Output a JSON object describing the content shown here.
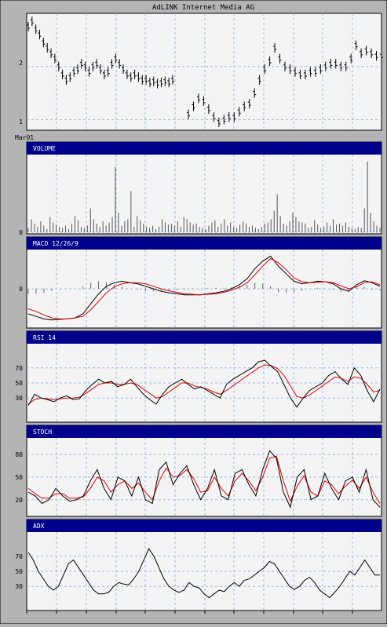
{
  "chart_data": [
    {
      "type": "bar",
      "title": "AdLINK Internet Media AG",
      "y_ticks": [
        "1",
        "2"
      ],
      "x_tick_label": "Mar01",
      "ylim": [
        0.8,
        3.0
      ],
      "note": "OHLC price bars",
      "segments": [
        [
          2.75,
          2.85,
          2.7,
          2.6,
          2.45,
          2.35,
          2.25,
          2.15,
          2.0,
          1.85,
          1.75,
          1.8,
          1.9,
          1.95,
          2.05,
          2.0,
          1.9,
          2.0,
          2.05,
          1.95,
          1.85,
          1.9,
          2.05,
          2.15,
          2.05,
          1.95,
          1.85,
          1.8,
          1.85,
          1.8,
          1.75,
          1.75,
          1.7,
          1.72,
          1.68,
          1.7,
          1.72,
          1.7,
          1.75
        ],
        [
          1.1,
          1.25,
          1.4,
          1.35,
          1.2,
          1.05,
          0.95,
          1.0,
          1.05,
          1.05,
          1.15,
          1.25,
          1.3,
          1.5,
          1.75,
          1.95,
          2.1,
          2.35,
          2.15,
          2.0,
          1.95,
          1.9,
          1.85,
          1.85,
          1.9,
          1.9,
          1.95,
          2.0,
          2.05,
          2.05,
          2.0,
          2.0,
          2.15,
          2.4,
          2.25,
          2.3,
          2.25,
          2.2,
          2.2
        ]
      ],
      "series": [
        {
          "name": "VOLUME",
          "y_ticks": [
            "0"
          ],
          "values": [
            4,
            12,
            8,
            5,
            10,
            6,
            3,
            14,
            9,
            7,
            5,
            4,
            6,
            3,
            8,
            15,
            11,
            5,
            4,
            6,
            22,
            12,
            8,
            5,
            10,
            6,
            9,
            14,
            60,
            18,
            6,
            10,
            12,
            38,
            5,
            15,
            11,
            8,
            5,
            4,
            6,
            3,
            5,
            12,
            9,
            7,
            8,
            6,
            10,
            5,
            14,
            12,
            9,
            7,
            8,
            5,
            4,
            3,
            6,
            9,
            11,
            5,
            8,
            12,
            6,
            9,
            5,
            4,
            7,
            10,
            8,
            5,
            6,
            4,
            3,
            5,
            8,
            9,
            12,
            20,
            35,
            15,
            8,
            6,
            10,
            18,
            14,
            10,
            9,
            8,
            4,
            5,
            11,
            7,
            4,
            5,
            9,
            6,
            12,
            7,
            8,
            6,
            9,
            5,
            4,
            3,
            5,
            4,
            22,
            65,
            18,
            10,
            6,
            4
          ]
        },
        {
          "name": "MACD 12/26/9",
          "y_ticks": [
            "0"
          ],
          "macd": [
            -0.5,
            -0.55,
            -0.6,
            -0.62,
            -0.61,
            -0.6,
            -0.58,
            -0.5,
            -0.3,
            -0.1,
            0.05,
            0.12,
            0.15,
            0.12,
            0.1,
            0.05,
            0.0,
            -0.05,
            -0.08,
            -0.1,
            -0.12,
            -0.12,
            -0.12,
            -0.1,
            -0.08,
            -0.05,
            0.0,
            0.08,
            0.2,
            0.4,
            0.55,
            0.65,
            0.45,
            0.3,
            0.15,
            0.1,
            0.12,
            0.15,
            0.14,
            0.1,
            0.0,
            -0.05,
            0.08,
            0.16,
            0.12,
            0.05
          ],
          "signal": [
            -0.4,
            -0.45,
            -0.52,
            -0.58,
            -0.6,
            -0.6,
            -0.58,
            -0.55,
            -0.42,
            -0.25,
            -0.08,
            0.04,
            0.1,
            0.12,
            0.12,
            0.1,
            0.05,
            0.0,
            -0.04,
            -0.07,
            -0.1,
            -0.11,
            -0.12,
            -0.11,
            -0.1,
            -0.07,
            -0.03,
            0.03,
            0.12,
            0.28,
            0.45,
            0.6,
            0.52,
            0.38,
            0.22,
            0.14,
            0.12,
            0.13,
            0.14,
            0.12,
            0.06,
            0.0,
            0.04,
            0.12,
            0.14,
            0.08
          ]
        },
        {
          "name": "RSI 14",
          "y_ticks": [
            "70",
            "50",
            "30"
          ],
          "rsi": [
            20,
            35,
            30,
            28,
            25,
            30,
            33,
            28,
            29,
            40,
            48,
            55,
            50,
            52,
            45,
            48,
            55,
            45,
            35,
            28,
            22,
            35,
            45,
            50,
            55,
            48,
            42,
            45,
            40,
            35,
            30,
            48,
            55,
            60,
            65,
            70,
            78,
            80,
            72,
            65,
            48,
            30,
            18,
            30,
            40,
            45,
            50,
            60,
            65,
            55,
            48,
            70,
            60,
            40,
            25,
            42
          ],
          "signal": [
            22,
            28,
            30,
            29,
            28,
            29,
            30,
            30,
            31,
            36,
            42,
            48,
            50,
            50,
            48,
            48,
            50,
            48,
            42,
            36,
            30,
            32,
            38,
            44,
            50,
            50,
            46,
            44,
            42,
            38,
            35,
            40,
            46,
            52,
            58,
            64,
            70,
            74,
            73,
            69,
            60,
            46,
            32,
            30,
            34,
            40,
            46,
            52,
            58,
            56,
            52,
            58,
            56,
            48,
            38,
            40
          ]
        },
        {
          "name": "STOCH",
          "y_ticks": [
            "80",
            "50",
            "20"
          ],
          "k": [
            30,
            25,
            15,
            20,
            35,
            25,
            18,
            20,
            25,
            45,
            60,
            35,
            20,
            50,
            45,
            25,
            50,
            20,
            15,
            60,
            70,
            40,
            55,
            65,
            40,
            20,
            35,
            60,
            25,
            20,
            55,
            60,
            40,
            25,
            60,
            85,
            75,
            30,
            10,
            50,
            60,
            20,
            25,
            55,
            35,
            20,
            45,
            50,
            30,
            60,
            20,
            10
          ],
          "d": [
            35,
            28,
            22,
            22,
            28,
            28,
            22,
            22,
            24,
            35,
            50,
            45,
            30,
            40,
            45,
            35,
            42,
            30,
            20,
            45,
            62,
            50,
            52,
            60,
            48,
            30,
            32,
            50,
            35,
            25,
            45,
            55,
            45,
            32,
            50,
            75,
            78,
            45,
            18,
            38,
            52,
            30,
            25,
            45,
            40,
            28,
            38,
            46,
            35,
            50,
            30,
            15
          ]
        },
        {
          "name": "ADX",
          "y_ticks": [
            "70",
            "50",
            "30"
          ],
          "values": [
            75,
            65,
            50,
            40,
            30,
            25,
            30,
            45,
            60,
            65,
            55,
            45,
            35,
            25,
            20,
            20,
            22,
            30,
            35,
            33,
            32,
            40,
            50,
            65,
            80,
            70,
            55,
            40,
            30,
            25,
            22,
            25,
            35,
            30,
            28,
            20,
            15,
            20,
            25,
            23,
            30,
            35,
            30,
            38,
            40,
            45,
            50,
            55,
            63,
            60,
            50,
            40,
            30,
            26,
            30,
            38,
            42,
            35,
            25,
            20,
            15,
            22,
            30,
            40,
            50,
            45,
            55,
            65,
            55,
            45,
            45
          ]
        }
      ]
    }
  ]
}
